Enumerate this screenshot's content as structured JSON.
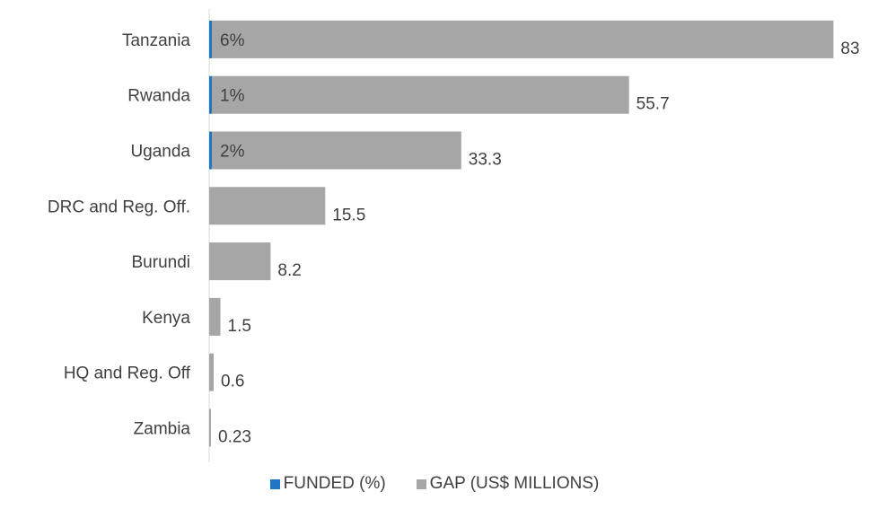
{
  "chart_data": {
    "type": "bar",
    "orientation": "horizontal",
    "stacked": true,
    "categories": [
      "Tanzania",
      "Rwanda",
      "Uganda",
      "DRC and Reg. Off.",
      "Burundi",
      "Kenya",
      "HQ and Reg. Off",
      "Zambia"
    ],
    "series": [
      {
        "name": "FUNDED (%)",
        "values": [
          6,
          1,
          2,
          0,
          0,
          0,
          0,
          0
        ],
        "labels": [
          "6%",
          "1%",
          "2%",
          "",
          "",
          "",
          "",
          ""
        ]
      },
      {
        "name": "GAP (US$ MILLIONS)",
        "values": [
          83,
          55.7,
          33.3,
          15.5,
          8.2,
          1.5,
          0.6,
          0.23
        ],
        "labels": [
          "83",
          "55.7",
          "33.3",
          "15.5",
          "8.2",
          "1.5",
          "0.6",
          "0.23"
        ]
      }
    ],
    "legend_position": "bottom",
    "grid": false
  },
  "colors": {
    "funded": "#1f77c4",
    "gap": "#a6a6a6",
    "axis": "#d9d9d9",
    "text": "#404040"
  }
}
